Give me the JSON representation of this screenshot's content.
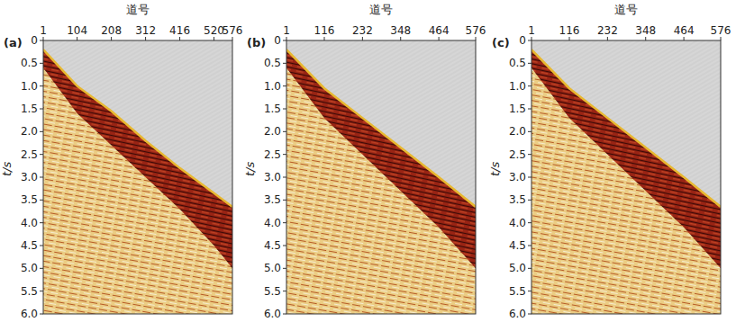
{
  "chart_data": [
    {
      "type": "seismic",
      "title": "(a)",
      "xlabel": "道号",
      "ylabel": "t/s",
      "xlim": [
        1,
        576
      ],
      "ylim": [
        0,
        6
      ],
      "xticks": [
        1,
        104,
        208,
        312,
        416,
        520,
        576
      ],
      "yticks": [
        0,
        0.5,
        {
          "value": 1,
          "label": "1.0"
        },
        1.5,
        {
          "value": 2,
          "label": "2.0"
        },
        2.5,
        {
          "value": 3,
          "label": "3.0"
        },
        3.5,
        {
          "value": 4,
          "label": "4.0"
        },
        4.5,
        {
          "value": 5,
          "label": "5.0"
        },
        5.5,
        {
          "value": 6,
          "label": "6.0"
        }
      ],
      "first_break": {
        "x": [
          1,
          104,
          208,
          312,
          416,
          520,
          576
        ],
        "t": [
          0.2,
          1.0,
          1.55,
          2.2,
          2.8,
          3.35,
          3.65
        ]
      },
      "band_base": {
        "x": [
          1,
          104,
          208,
          312,
          416,
          520,
          576
        ],
        "t": [
          0.6,
          1.6,
          2.3,
          3.0,
          3.7,
          4.5,
          5.0
        ]
      }
    },
    {
      "type": "seismic",
      "title": "(b)",
      "xlabel": "道号",
      "ylabel": "t/s",
      "xlim": [
        1,
        576
      ],
      "ylim": [
        0,
        6
      ],
      "xticks": [
        1,
        116,
        232,
        348,
        464,
        576
      ],
      "yticks": [
        0,
        0.5,
        {
          "value": 1,
          "label": "1.0"
        },
        1.5,
        {
          "value": 2,
          "label": "2.0"
        },
        2.5,
        {
          "value": 3,
          "label": "3.0"
        },
        3.5,
        {
          "value": 4,
          "label": "4.0"
        },
        4.5,
        {
          "value": 5,
          "label": "5.0"
        },
        5.5,
        {
          "value": 6,
          "label": "6.0"
        }
      ],
      "first_break": {
        "x": [
          1,
          116,
          232,
          348,
          464,
          576
        ],
        "t": [
          0.2,
          1.05,
          1.7,
          2.35,
          3.0,
          3.65
        ]
      },
      "band_base": {
        "x": [
          1,
          116,
          232,
          348,
          464,
          576
        ],
        "t": [
          0.6,
          1.7,
          2.5,
          3.3,
          4.1,
          5.0
        ]
      }
    },
    {
      "type": "seismic",
      "title": "(c)",
      "xlabel": "道号",
      "ylabel": "t/s",
      "xlim": [
        1,
        576
      ],
      "ylim": [
        0,
        6
      ],
      "xticks": [
        1,
        116,
        232,
        348,
        464,
        576
      ],
      "yticks": [
        0,
        0.5,
        {
          "value": 1,
          "label": "1.0"
        },
        1.5,
        {
          "value": 2,
          "label": "2.0"
        },
        2.5,
        {
          "value": 3,
          "label": "3.0"
        },
        3.5,
        {
          "value": 4,
          "label": "4.0"
        },
        4.5,
        {
          "value": 5,
          "label": "5.0"
        },
        5.5,
        {
          "value": 6,
          "label": "6.0"
        }
      ],
      "first_break": {
        "x": [
          1,
          116,
          232,
          348,
          464,
          576
        ],
        "t": [
          0.2,
          1.05,
          1.7,
          2.35,
          3.0,
          3.65
        ]
      },
      "band_base": {
        "x": [
          1,
          116,
          232,
          348,
          464,
          576
        ],
        "t": [
          0.6,
          1.7,
          2.5,
          3.3,
          4.1,
          5.0
        ]
      }
    }
  ]
}
